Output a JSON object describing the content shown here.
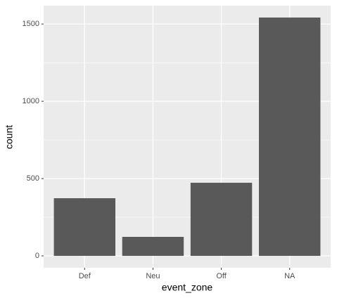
{
  "chart_data": {
    "type": "bar",
    "x_label": "event_zone",
    "y_label": "count",
    "categories": [
      "Def",
      "Neu",
      "Off",
      "NA"
    ],
    "values": [
      373,
      123,
      473,
      1542
    ],
    "color": "#595959",
    "ylim": [
      -77,
      1619
    ],
    "yticks": [
      0,
      500,
      1000,
      1500
    ],
    "y_minor_grid": [
      250,
      750,
      1250
    ],
    "grid": true
  }
}
